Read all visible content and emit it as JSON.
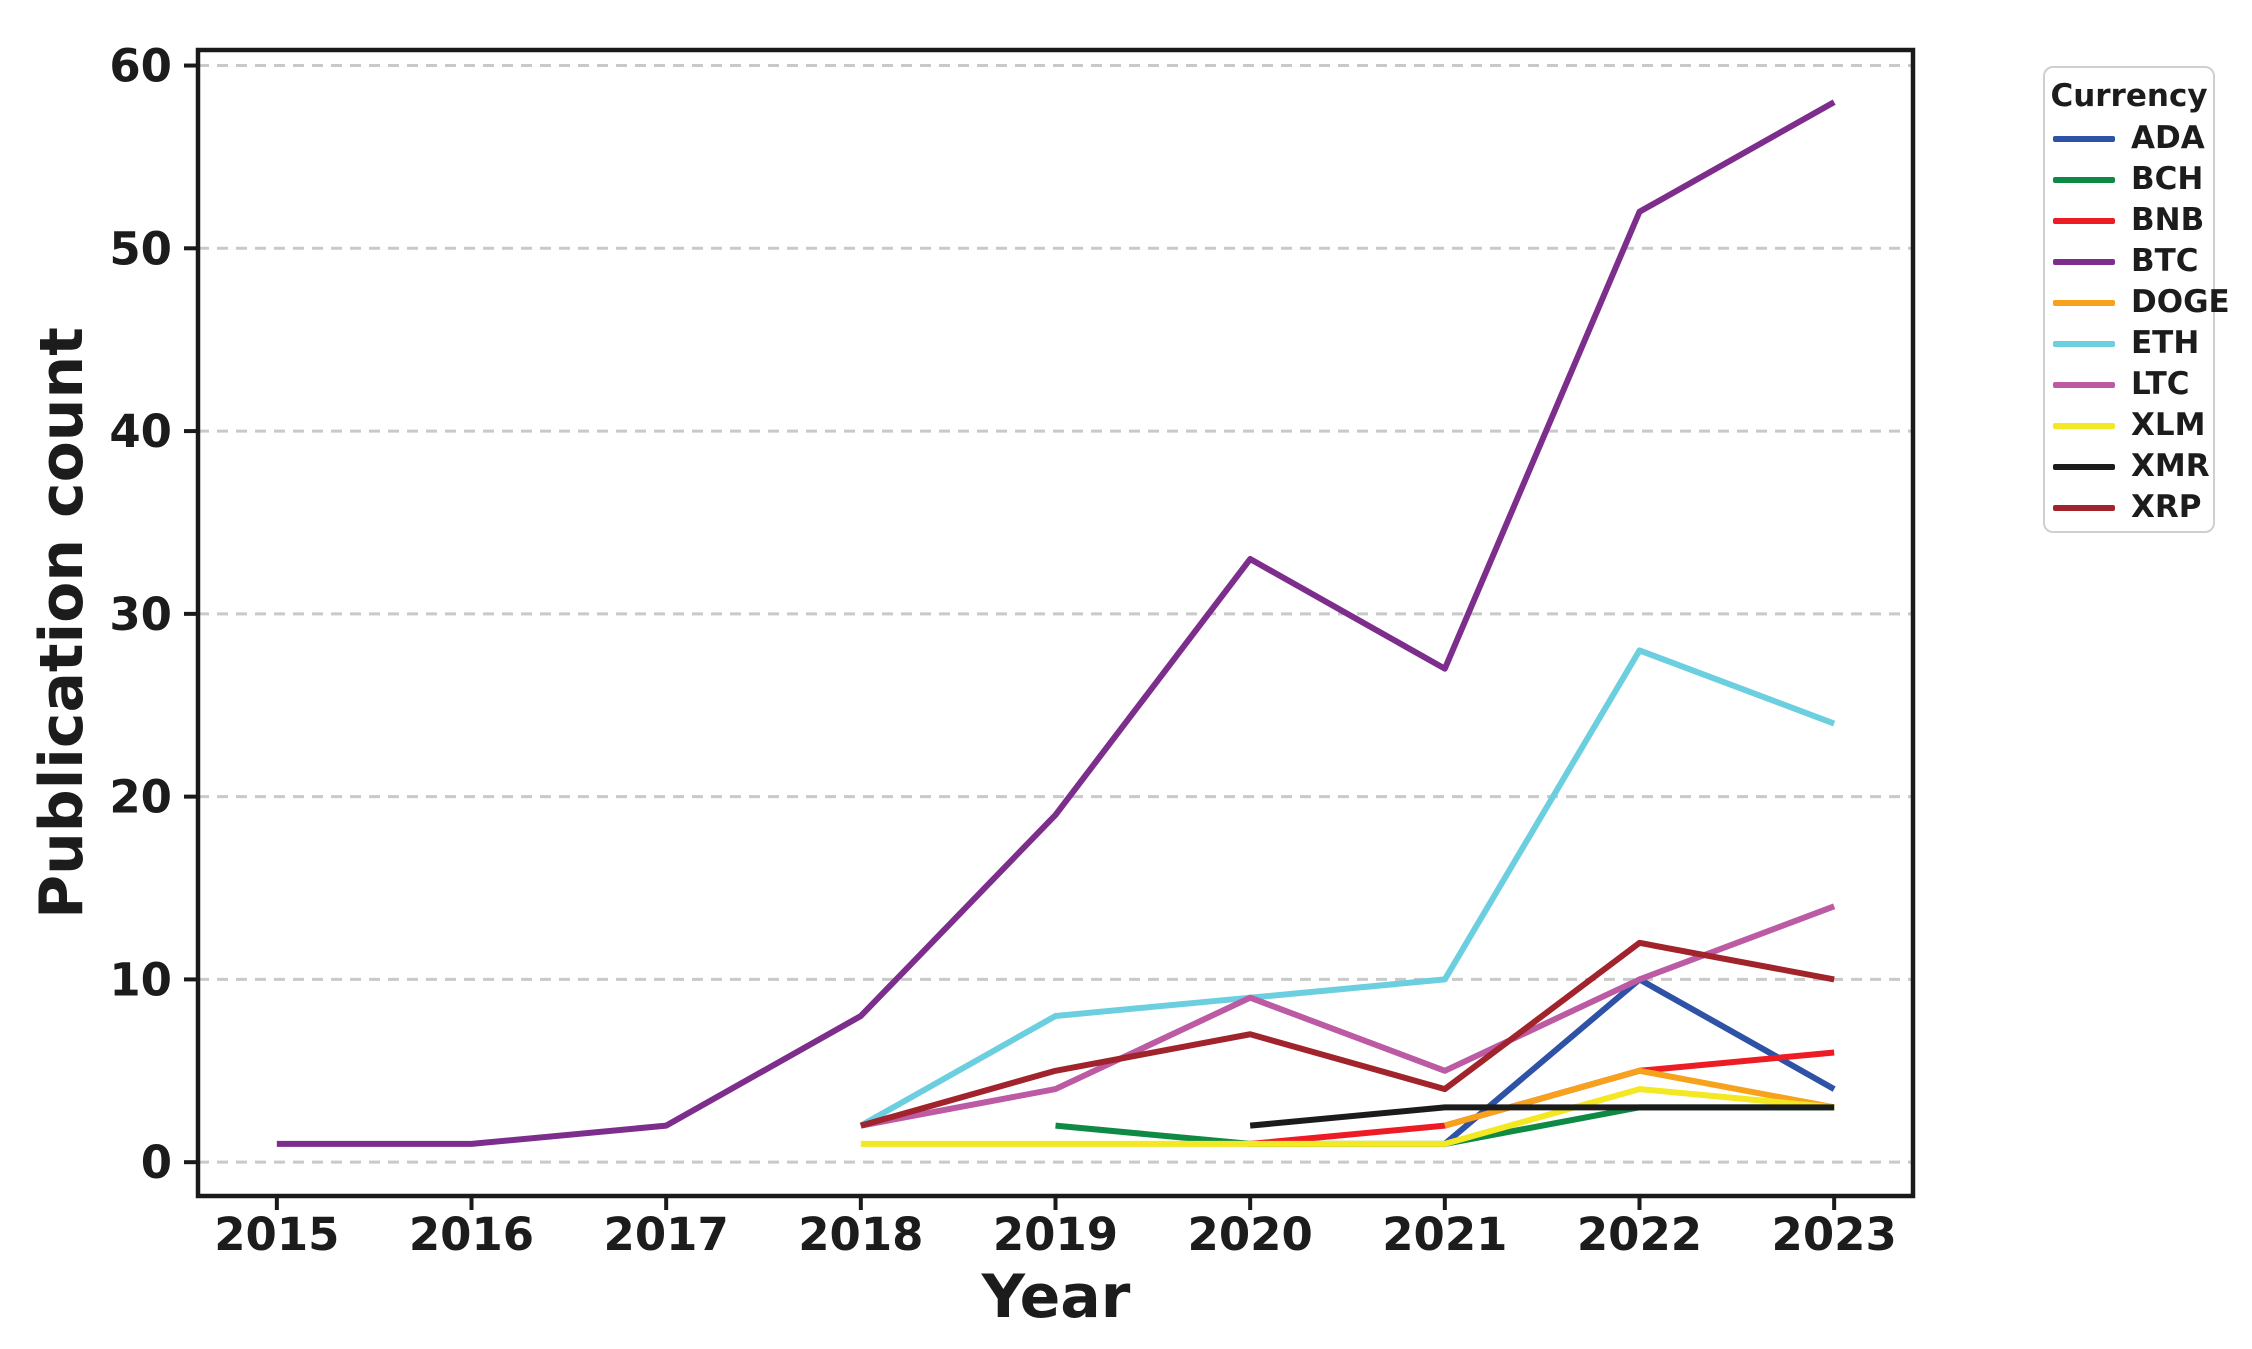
{
  "chart_data": {
    "type": "line",
    "title": "",
    "xlabel": "Year",
    "ylabel": "Publication count",
    "x_ticks": [
      2015,
      2016,
      2017,
      2018,
      2019,
      2020,
      2021,
      2022,
      2023
    ],
    "y_ticks": [
      0,
      10,
      20,
      30,
      40,
      50,
      60
    ],
    "xlim": [
      2014.595,
      2023.405
    ],
    "ylim": [
      -1.85,
      60.85
    ],
    "grid": "horizontal-dashed",
    "grid_color": "#c9c9c9",
    "spine_color": "#1a1a1a",
    "legend_title": "Currency",
    "legend_position": "outside-right-top",
    "series": [
      {
        "name": "ADA",
        "color": "#2e52a5",
        "x": [
          2021,
          2022,
          2023
        ],
        "y": [
          1,
          10,
          4
        ]
      },
      {
        "name": "BCH",
        "color": "#0f8a45",
        "x": [
          2019,
          2020,
          2021,
          2022,
          2023
        ],
        "y": [
          2,
          1,
          1,
          3,
          3
        ]
      },
      {
        "name": "BNB",
        "color": "#ee1b24",
        "x": [
          2020,
          2021,
          2022,
          2023
        ],
        "y": [
          1,
          2,
          5,
          6
        ]
      },
      {
        "name": "BTC",
        "color": "#7d2d8b",
        "x": [
          2015,
          2016,
          2017,
          2018,
          2019,
          2020,
          2021,
          2022,
          2023
        ],
        "y": [
          1,
          1,
          2,
          8,
          19,
          33,
          27,
          52,
          58
        ]
      },
      {
        "name": "DOGE",
        "color": "#f7a21c",
        "x": [
          2021,
          2022,
          2023
        ],
        "y": [
          2,
          5,
          3
        ]
      },
      {
        "name": "ETH",
        "color": "#6ccfdf",
        "x": [
          2018,
          2019,
          2020,
          2021,
          2022,
          2023
        ],
        "y": [
          2,
          8,
          9,
          10,
          28,
          24
        ]
      },
      {
        "name": "LTC",
        "color": "#bc5aa4",
        "x": [
          2018,
          2019,
          2020,
          2021,
          2022,
          2023
        ],
        "y": [
          2,
          4,
          9,
          5,
          10,
          14
        ]
      },
      {
        "name": "XLM",
        "color": "#f3e821",
        "x": [
          2018,
          2019,
          2020,
          2021,
          2022,
          2023
        ],
        "y": [
          1,
          1,
          1,
          1,
          4,
          3
        ]
      },
      {
        "name": "XMR",
        "color": "#1b1b1b",
        "x": [
          2020,
          2021,
          2022,
          2023
        ],
        "y": [
          2,
          3,
          3,
          3
        ]
      },
      {
        "name": "XRP",
        "color": "#a1232b",
        "x": [
          2018,
          2019,
          2020,
          2021,
          2022,
          2023
        ],
        "y": [
          2,
          5,
          7,
          4,
          12,
          10
        ]
      }
    ]
  }
}
